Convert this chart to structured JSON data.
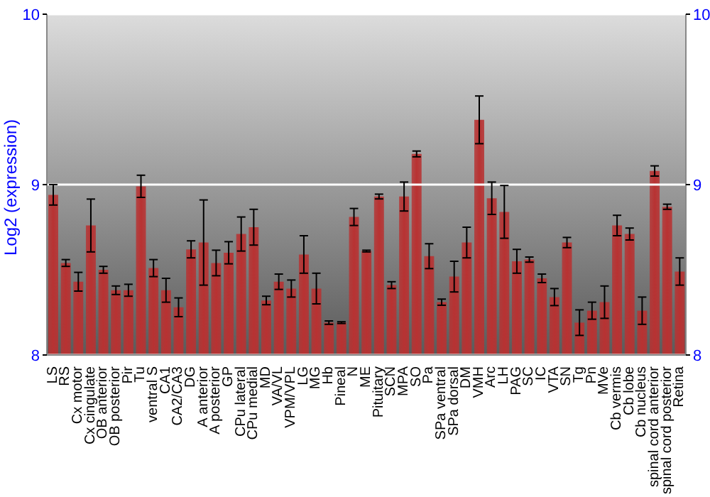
{
  "chart_data": {
    "type": "bar",
    "ylabel": "Log2 (expression)",
    "categories": [
      "LS",
      "RS",
      "Cx motor",
      "Cx cingulate",
      "OB anterior",
      "OB posterior",
      "Pir",
      "Tu",
      "ventral S",
      "CA1",
      "CA2/CA3",
      "DG",
      "A anterior",
      "A posterior",
      "GP",
      "CPu lateral",
      "CPu medial",
      "MD",
      "VA/VL",
      "VPM/VPL",
      "LG",
      "MG",
      "Hb",
      "Pineal",
      "N",
      "ME",
      "Pituitary",
      "SCN",
      "MPA",
      "SO",
      "Pa",
      "SPa ventral",
      "SPa dorsal",
      "DM",
      "VMH",
      "Arc",
      "LH",
      "PAG",
      "SC",
      "IC",
      "VTA",
      "SN",
      "Tg",
      "Pn",
      "MVe",
      "Cb vermis",
      "Cb lobe",
      "Cb nucleus",
      "spinal cord anterior",
      "spinal cord posterior",
      "Retina"
    ],
    "values": [
      8.94,
      8.54,
      8.43,
      8.76,
      8.5,
      8.38,
      8.38,
      8.99,
      8.51,
      8.38,
      8.28,
      8.62,
      8.66,
      8.54,
      8.6,
      8.71,
      8.75,
      8.32,
      8.43,
      8.39,
      8.59,
      8.39,
      8.19,
      8.19,
      8.81,
      8.61,
      8.93,
      8.41,
      8.93,
      9.18,
      8.58,
      8.31,
      8.46,
      8.66,
      9.38,
      8.92,
      8.84,
      8.55,
      8.56,
      8.45,
      8.34,
      8.66,
      8.19,
      8.26,
      8.31,
      8.76,
      8.71,
      8.26,
      9.08,
      8.87,
      8.49
    ],
    "errors": [
      0.06,
      0.02,
      0.055,
      0.155,
      0.02,
      0.025,
      0.035,
      0.065,
      0.05,
      0.07,
      0.055,
      0.05,
      0.25,
      0.075,
      0.065,
      0.1,
      0.105,
      0.025,
      0.045,
      0.05,
      0.11,
      0.09,
      0.01,
      0.005,
      0.05,
      0.005,
      0.014,
      0.02,
      0.085,
      0.017,
      0.073,
      0.018,
      0.09,
      0.09,
      0.14,
      0.095,
      0.155,
      0.07,
      0.015,
      0.025,
      0.05,
      0.03,
      0.075,
      0.05,
      0.095,
      0.06,
      0.035,
      0.08,
      0.03,
      0.015,
      0.08
    ],
    "color": "#b83232",
    "ylim": [
      8,
      10
    ],
    "yticks": [
      8,
      9,
      10
    ],
    "y2lim": [
      8,
      10
    ],
    "y2ticks": [
      8,
      9,
      10
    ],
    "grid": "y"
  }
}
